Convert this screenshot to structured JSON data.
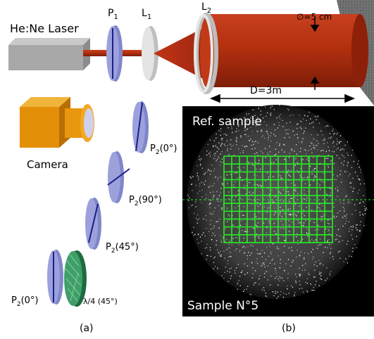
{
  "setup": {
    "laser_label": "He:Ne Laser",
    "p1_label": "P",
    "p1_sub": "1",
    "l1_label": "L",
    "l1_sub": "1",
    "l2_label": "L",
    "l2_sub": "2",
    "diameter_label": "∅=5 cm",
    "distance_label": "D=3m",
    "camera_label": "Camera"
  },
  "polarizers": [
    {
      "prefix": "P",
      "sub": "2",
      "suffix": "(0°)"
    },
    {
      "prefix": "P",
      "sub": "2",
      "suffix": "(90°)"
    },
    {
      "prefix": "P",
      "sub": "2",
      "suffix": "(45°)"
    },
    {
      "prefix": "P",
      "sub": "2",
      "suffix": "(0°)"
    }
  ],
  "waveplate_label": "λ/4 (45°)",
  "speckle": {
    "ref_label": "Ref. sample",
    "sample_label": "Sample N°5",
    "grid_color": "#22ee22",
    "grid_rows": 11,
    "grid_cols": 14
  },
  "panels": {
    "a": "(a)",
    "b": "(b)"
  },
  "colors": {
    "laser_body": "#a8a8a8",
    "beam": "#b02a10",
    "polarizer": "#8f95d6",
    "lens": "#d8d8d8",
    "camera": "#e8970e",
    "waveplate": "#2f8a57",
    "wall": "#6a6a6a"
  }
}
